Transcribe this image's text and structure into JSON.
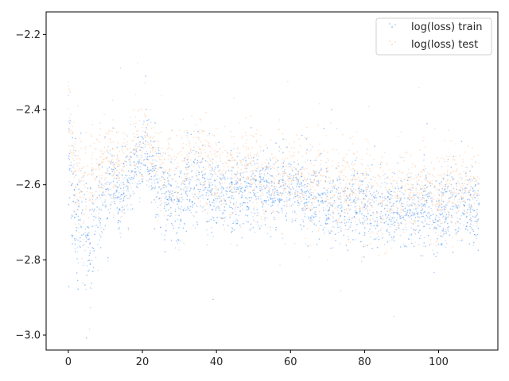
{
  "chart_data": {
    "type": "scatter",
    "title": "",
    "xlabel": "",
    "ylabel": "",
    "xlim": [
      -6,
      116
    ],
    "ylim": [
      -3.04,
      -2.14
    ],
    "x_ticks": [
      0,
      20,
      40,
      60,
      80,
      100
    ],
    "x_tick_labels": [
      "0",
      "20",
      "40",
      "60",
      "80",
      "100"
    ],
    "y_ticks": [
      -3.0,
      -2.8,
      -2.6,
      -2.4,
      -2.2
    ],
    "y_tick_labels": [
      "−3.0",
      "−2.8",
      "−2.6",
      "−2.4",
      "−2.2"
    ],
    "grid": false,
    "legend_position": "top-right",
    "series": [
      {
        "name": "log(loss) train",
        "color": "#1f77b4",
        "render_color": "#2f86f0",
        "x_range": [
          0,
          111
        ],
        "trend": [
          [
            0.0,
            -2.48
          ],
          [
            1.0,
            -2.62
          ],
          [
            2.0,
            -2.68
          ],
          [
            3.0,
            -2.7
          ],
          [
            4.0,
            -2.75
          ],
          [
            5.0,
            -2.78
          ],
          [
            6.0,
            -2.76
          ],
          [
            7.0,
            -2.72
          ],
          [
            8.0,
            -2.68
          ],
          [
            10.0,
            -2.62
          ],
          [
            12.0,
            -2.56
          ],
          [
            14.0,
            -2.62
          ],
          [
            16.0,
            -2.6
          ],
          [
            18.0,
            -2.57
          ],
          [
            19.5,
            -2.52
          ],
          [
            21.0,
            -2.5
          ],
          [
            22.5,
            -2.53
          ],
          [
            24.0,
            -2.6
          ],
          [
            26.0,
            -2.62
          ],
          [
            28.0,
            -2.64
          ],
          [
            30.0,
            -2.66
          ],
          [
            32.0,
            -2.62
          ],
          [
            34.0,
            -2.6
          ],
          [
            36.0,
            -2.58
          ],
          [
            38.0,
            -2.63
          ],
          [
            40.0,
            -2.61
          ],
          [
            45.0,
            -2.63
          ],
          [
            50.0,
            -2.62
          ],
          [
            55.0,
            -2.61
          ],
          [
            60.0,
            -2.62
          ],
          [
            65.0,
            -2.63
          ],
          [
            70.0,
            -2.65
          ],
          [
            80.0,
            -2.66
          ],
          [
            90.0,
            -2.67
          ],
          [
            100.0,
            -2.67
          ],
          [
            111.0,
            -2.66
          ]
        ],
        "spread": [
          [
            0.0,
            0.08
          ],
          [
            5.0,
            0.09
          ],
          [
            10.0,
            0.06
          ],
          [
            20.0,
            0.05
          ],
          [
            30.0,
            0.06
          ],
          [
            40.0,
            0.05
          ],
          [
            60.0,
            0.05
          ],
          [
            80.0,
            0.05
          ],
          [
            111.0,
            0.055
          ]
        ]
      },
      {
        "name": "log(loss) test",
        "color": "#ff7f0e",
        "render_color": "#ffb070",
        "x_range": [
          0,
          111
        ],
        "trend": [
          [
            0.0,
            -2.36
          ],
          [
            1.0,
            -2.5
          ],
          [
            2.0,
            -2.58
          ],
          [
            4.0,
            -2.6
          ],
          [
            6.0,
            -2.6
          ],
          [
            8.0,
            -2.56
          ],
          [
            10.0,
            -2.55
          ],
          [
            14.0,
            -2.56
          ],
          [
            18.0,
            -2.5
          ],
          [
            21.0,
            -2.47
          ],
          [
            24.0,
            -2.55
          ],
          [
            30.0,
            -2.58
          ],
          [
            35.0,
            -2.5
          ],
          [
            40.0,
            -2.57
          ],
          [
            50.0,
            -2.57
          ],
          [
            60.0,
            -2.58
          ],
          [
            80.0,
            -2.62
          ],
          [
            100.0,
            -2.63
          ],
          [
            111.0,
            -2.62
          ]
        ],
        "spread": [
          [
            0.0,
            0.06
          ],
          [
            20.0,
            0.06
          ],
          [
            60.0,
            0.06
          ],
          [
            111.0,
            0.06
          ]
        ]
      }
    ]
  }
}
